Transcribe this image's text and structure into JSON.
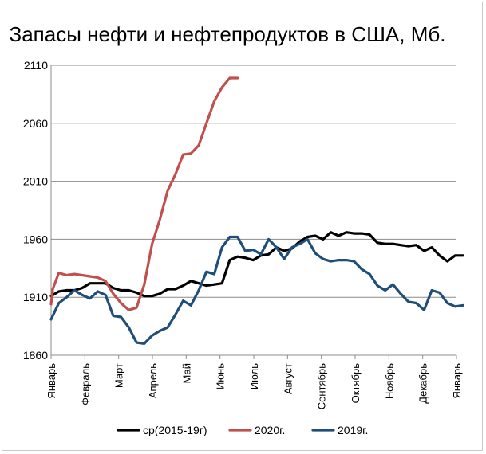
{
  "chart_data": {
    "type": "line",
    "title": "Запасы нефти и нефтепродуктов в США, Мб.",
    "xlabel": "",
    "ylabel": "",
    "ylim": [
      1860,
      2110
    ],
    "yticks": [
      1860,
      1910,
      1960,
      2010,
      2060,
      2110
    ],
    "grid": true,
    "legend_position": "bottom",
    "x_tick_labels": [
      "Январь",
      "Февраль",
      "Март",
      "Апрель",
      "Май",
      "Июнь",
      "Июль",
      "Август",
      "Сентябрь",
      "Октябрь",
      "Ноябрь",
      "Декабрь",
      "Январь"
    ],
    "series": [
      {
        "name": "ср(2015-19г)",
        "color": "#000000",
        "x": [
          0,
          0.23,
          0.46,
          0.69,
          0.92,
          1.15,
          1.38,
          1.61,
          1.84,
          2.07,
          2.3,
          2.53,
          2.76,
          2.99,
          3.22,
          3.45,
          3.68,
          3.91,
          4.14,
          4.37,
          4.6,
          4.83,
          5.06,
          5.29,
          5.52,
          5.75,
          5.98,
          6.21,
          6.44,
          6.67,
          6.9,
          7.13,
          7.36,
          7.59,
          7.82,
          8.05,
          8.28,
          8.51,
          8.74,
          8.97,
          9.2,
          9.43,
          9.66,
          9.89,
          10.12,
          10.35,
          10.58,
          10.81,
          11.04,
          11.27,
          11.5,
          11.73,
          11.96,
          12.19
        ],
        "values": [
          1911,
          1915,
          1916,
          1916,
          1918,
          1922,
          1922,
          1922,
          1918,
          1916,
          1916,
          1914,
          1911,
          1911,
          1913,
          1917,
          1917,
          1920,
          1924,
          1922,
          1920,
          1921,
          1922,
          1942,
          1945,
          1944,
          1942,
          1946,
          1947,
          1953,
          1950,
          1952,
          1958,
          1962,
          1963,
          1960,
          1966,
          1963,
          1966,
          1965,
          1965,
          1964,
          1957,
          1956,
          1956,
          1955,
          1954,
          1955,
          1950,
          1953,
          1946,
          1941,
          1946,
          1946
        ]
      },
      {
        "name": "2020г.",
        "color": "#c0504d",
        "x": [
          0,
          0.05,
          0.23,
          0.46,
          0.69,
          0.92,
          1.15,
          1.38,
          1.61,
          1.84,
          2.07,
          2.3,
          2.53,
          2.76,
          2.99,
          3.22,
          3.45,
          3.68,
          3.91,
          4.14,
          4.37,
          4.6,
          4.83,
          5.06,
          5.29,
          5.52
        ],
        "values": [
          1904,
          1917,
          1931,
          1929,
          1930,
          1929,
          1928,
          1927,
          1924,
          1913,
          1905,
          1899,
          1901,
          1921,
          1956,
          1977,
          2002,
          2016,
          2033,
          2034,
          2041,
          2060,
          2079,
          2091,
          2099,
          2099
        ]
      },
      {
        "name": "2019г.",
        "color": "#1f4e79",
        "x": [
          0,
          0.23,
          0.46,
          0.69,
          0.92,
          1.15,
          1.38,
          1.61,
          1.84,
          2.07,
          2.3,
          2.53,
          2.76,
          2.99,
          3.22,
          3.45,
          3.68,
          3.91,
          4.14,
          4.37,
          4.6,
          4.83,
          5.06,
          5.29,
          5.52,
          5.75,
          5.98,
          6.21,
          6.44,
          6.67,
          6.9,
          7.13,
          7.36,
          7.59,
          7.82,
          8.05,
          8.28,
          8.51,
          8.74,
          8.97,
          9.2,
          9.43,
          9.66,
          9.89,
          10.12,
          10.35,
          10.58,
          10.81,
          11.04,
          11.27,
          11.5,
          11.73,
          11.96,
          12.19
        ],
        "values": [
          1891,
          1905,
          1910,
          1916,
          1912,
          1909,
          1915,
          1912,
          1894,
          1893,
          1884,
          1871,
          1870,
          1877,
          1881,
          1884,
          1895,
          1907,
          1903,
          1916,
          1932,
          1930,
          1953,
          1962,
          1962,
          1950,
          1951,
          1947,
          1960,
          1953,
          1943,
          1953,
          1956,
          1960,
          1948,
          1943,
          1941,
          1942,
          1942,
          1941,
          1934,
          1930,
          1920,
          1916,
          1921,
          1913,
          1906,
          1905,
          1899,
          1916,
          1914,
          1905,
          1902,
          1903
        ]
      }
    ]
  }
}
